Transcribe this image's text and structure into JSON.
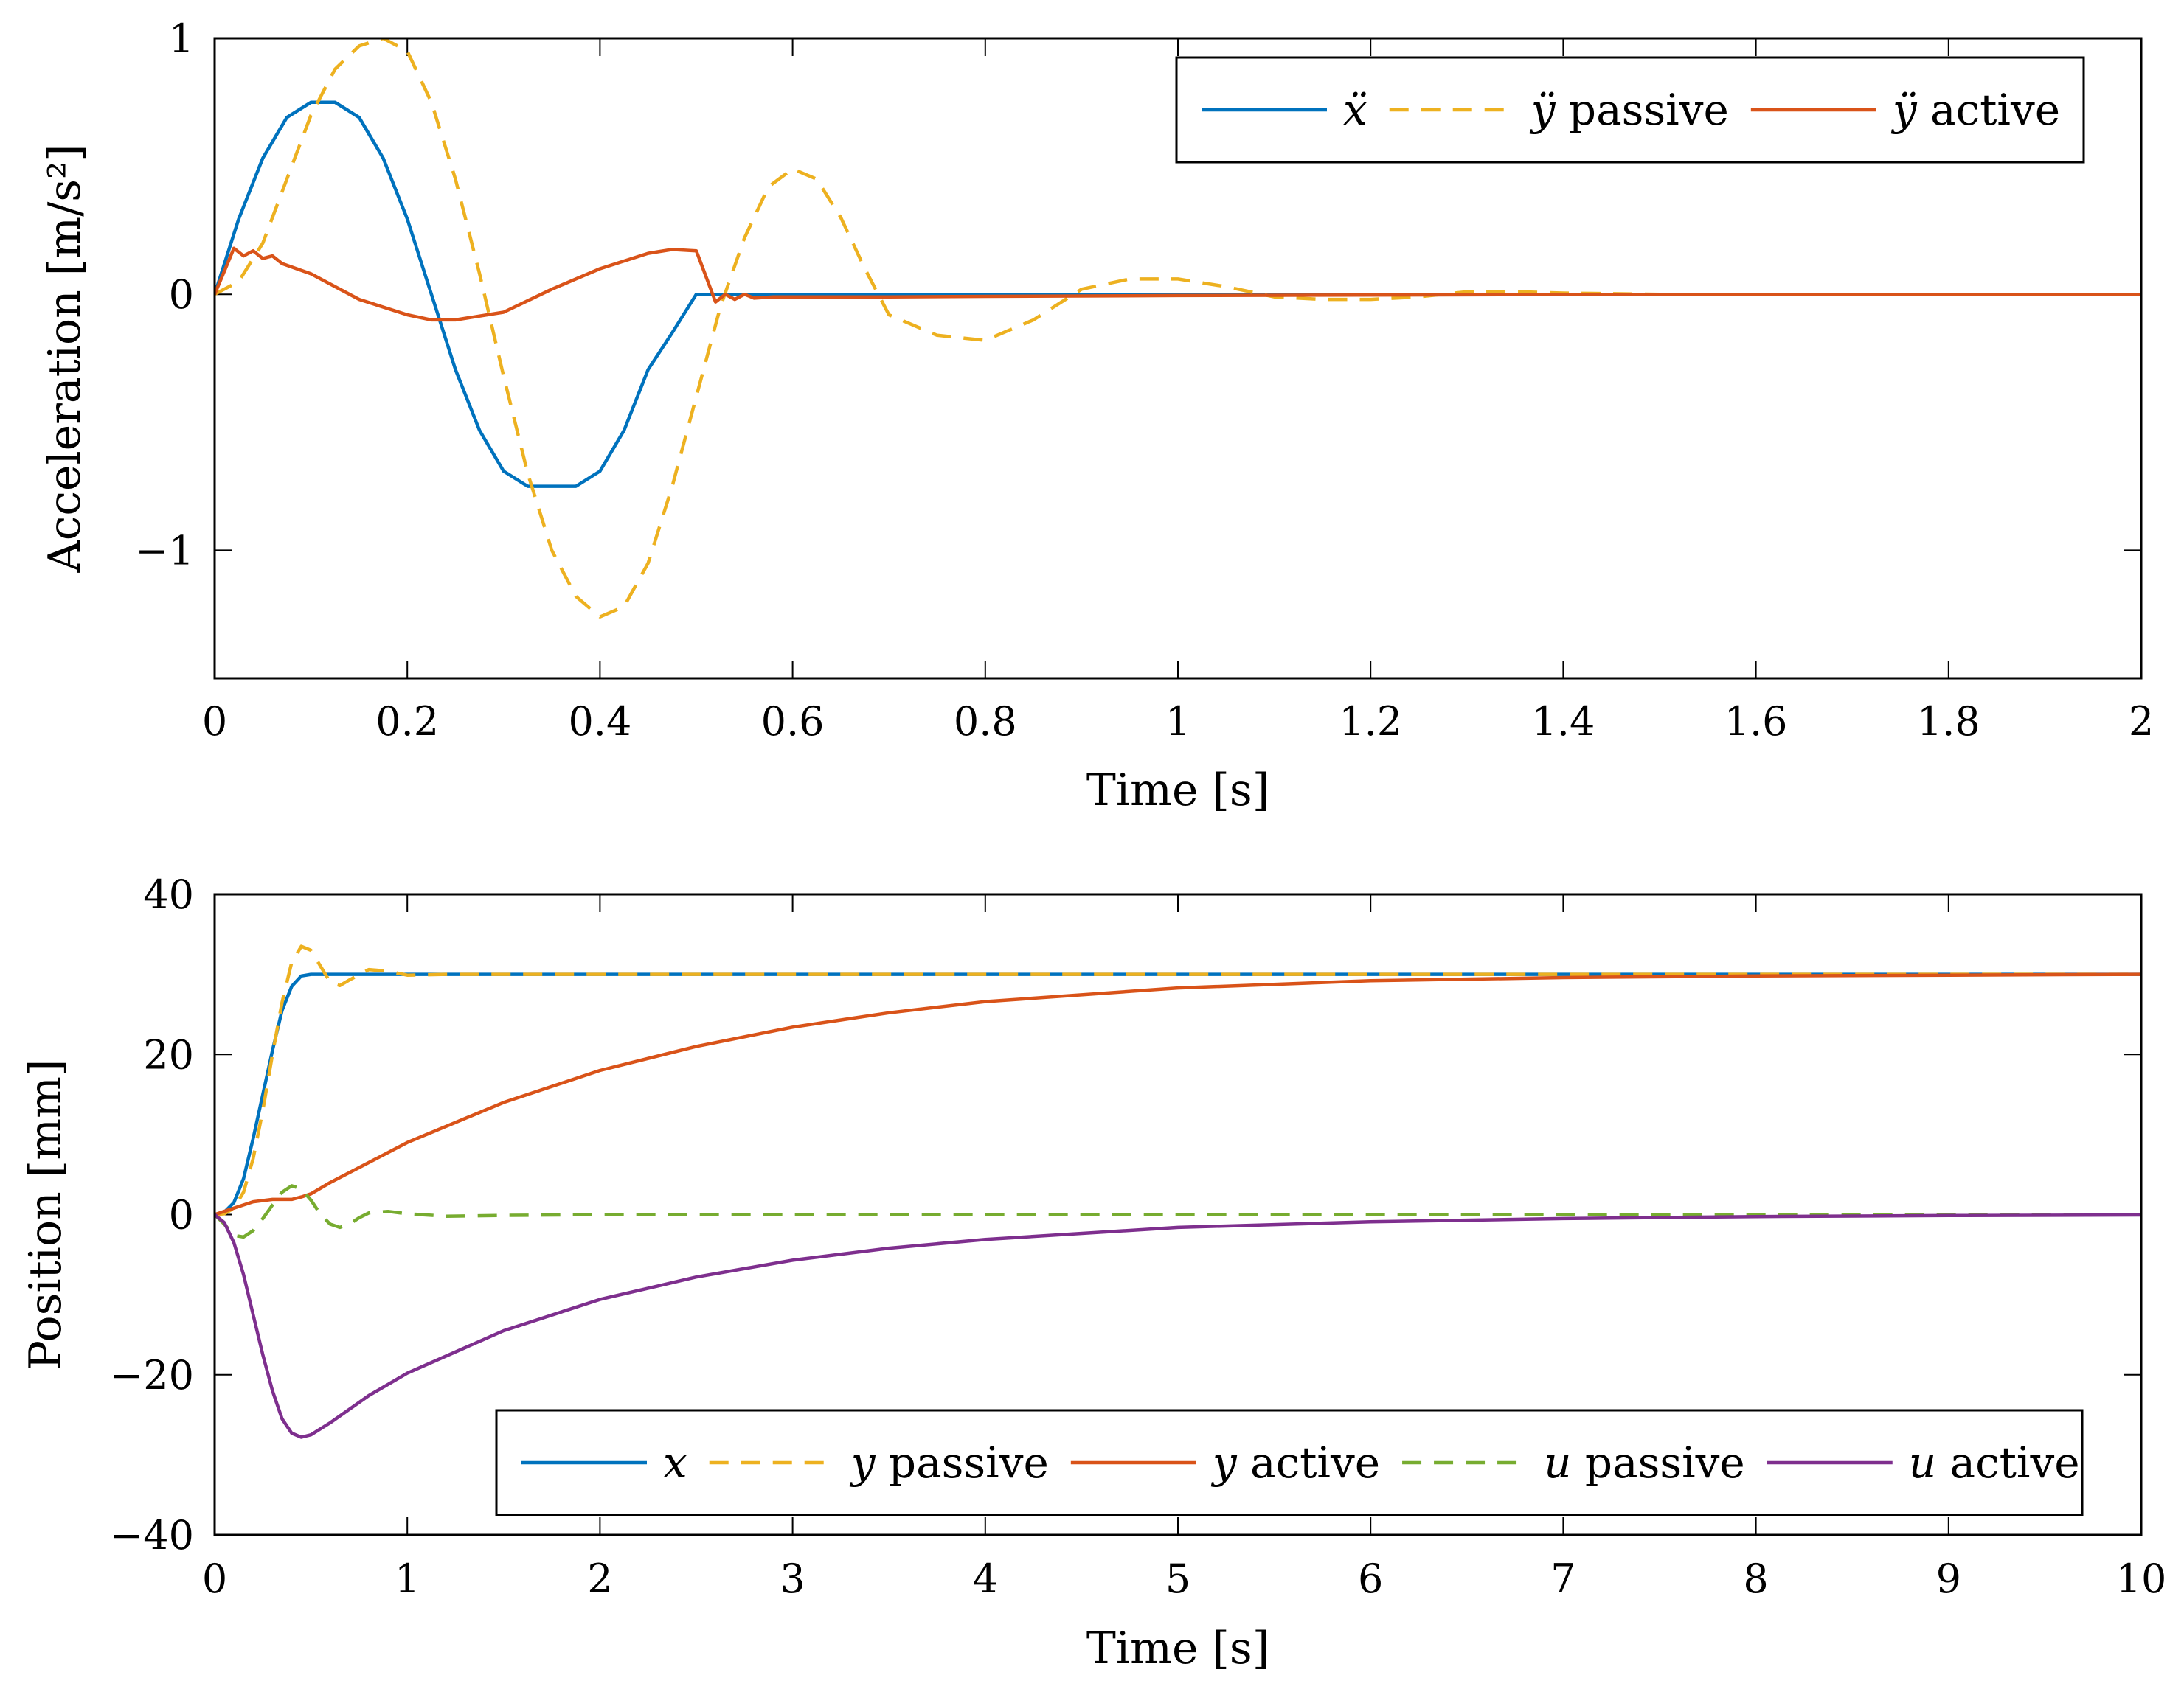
{
  "chart_data": [
    {
      "type": "line",
      "xlabel": "Time [s]",
      "ylabel": "Acceleration [m/s²]",
      "xlim": [
        0,
        2
      ],
      "ylim": [
        -1.5,
        1
      ],
      "xticks": [
        0,
        0.2,
        0.4,
        0.6,
        0.8,
        1,
        1.2,
        1.4,
        1.6,
        1.8,
        2
      ],
      "xtick_labels": [
        "0",
        "0.2",
        "0.4",
        "0.6",
        "0.8",
        "1",
        "1.2",
        "1.4",
        "1.6",
        "1.8",
        "2"
      ],
      "yticks": [
        -1,
        0,
        1
      ],
      "ytick_labels": [
        "−1",
        "0",
        "1"
      ],
      "grid": false,
      "legend_position": "top-right",
      "series": [
        {
          "name": "ẍ",
          "legend_symbol": "ẍ",
          "legend_text": "",
          "color": "#0072BD",
          "dash": "solid",
          "x": [
            0,
            0.025,
            0.05,
            0.075,
            0.1,
            0.125,
            0.15,
            0.175,
            0.2,
            0.225,
            0.25,
            0.275,
            0.3,
            0.325,
            0.35,
            0.375,
            0.4,
            0.425,
            0.45,
            0.475,
            0.5,
            0.6,
            0.8,
            1.0,
            1.5,
            2.0
          ],
          "y": [
            0,
            0.294,
            0.532,
            0.691,
            0.75,
            0.75,
            0.691,
            0.532,
            0.294,
            0.0,
            -0.294,
            -0.532,
            -0.691,
            -0.75,
            -0.75,
            -0.75,
            -0.691,
            -0.532,
            -0.294,
            -0.15,
            0,
            0,
            0,
            0,
            0,
            0
          ]
        },
        {
          "name": "ÿ passive",
          "legend_symbol": "ÿ",
          "legend_text": " passive",
          "color": "#EDB120",
          "dash": "dashed",
          "x": [
            0,
            0.025,
            0.05,
            0.075,
            0.1,
            0.125,
            0.15,
            0.175,
            0.2,
            0.225,
            0.25,
            0.275,
            0.3,
            0.325,
            0.35,
            0.375,
            0.4,
            0.425,
            0.45,
            0.475,
            0.5,
            0.525,
            0.55,
            0.575,
            0.6,
            0.625,
            0.65,
            0.675,
            0.7,
            0.75,
            0.8,
            0.85,
            0.9,
            0.95,
            1.0,
            1.05,
            1.1,
            1.15,
            1.2,
            1.25,
            1.3,
            1.35,
            1.4,
            1.5,
            1.6,
            1.8,
            2.0
          ],
          "y": [
            0,
            0.05,
            0.2,
            0.45,
            0.7,
            0.88,
            0.97,
            1.0,
            0.95,
            0.75,
            0.45,
            0.08,
            -0.32,
            -0.7,
            -1.0,
            -1.18,
            -1.26,
            -1.22,
            -1.05,
            -0.75,
            -0.4,
            -0.05,
            0.22,
            0.42,
            0.49,
            0.45,
            0.3,
            0.1,
            -0.08,
            -0.16,
            -0.18,
            -0.1,
            0.02,
            0.06,
            0.06,
            0.03,
            -0.01,
            -0.02,
            -0.02,
            -0.01,
            0.01,
            0.01,
            0.005,
            0,
            0,
            0,
            0
          ]
        },
        {
          "name": "ÿ active",
          "legend_symbol": "ÿ",
          "legend_text": " active",
          "color": "#D95319",
          "dash": "solid",
          "x": [
            0,
            0.01,
            0.02,
            0.03,
            0.04,
            0.05,
            0.06,
            0.07,
            0.1,
            0.15,
            0.2,
            0.225,
            0.25,
            0.3,
            0.35,
            0.4,
            0.45,
            0.475,
            0.5,
            0.51,
            0.52,
            0.53,
            0.54,
            0.55,
            0.56,
            0.58,
            0.6,
            0.7,
            0.8,
            1.0,
            1.5,
            2.0
          ],
          "y": [
            0,
            0.09,
            0.18,
            0.15,
            0.17,
            0.14,
            0.15,
            0.12,
            0.08,
            -0.02,
            -0.08,
            -0.1,
            -0.1,
            -0.07,
            0.02,
            0.1,
            0.16,
            0.175,
            0.17,
            0.07,
            -0.03,
            0.0,
            -0.02,
            0.0,
            -0.015,
            -0.01,
            -0.01,
            -0.01,
            -0.008,
            -0.005,
            0,
            0
          ]
        }
      ]
    },
    {
      "type": "line",
      "xlabel": "Time [s]",
      "ylabel": "Position [mm]",
      "xlim": [
        0,
        10
      ],
      "ylim": [
        -40,
        40
      ],
      "xticks": [
        0,
        1,
        2,
        3,
        4,
        5,
        6,
        7,
        8,
        9,
        10
      ],
      "xtick_labels": [
        "0",
        "1",
        "2",
        "3",
        "4",
        "5",
        "6",
        "7",
        "8",
        "9",
        "10"
      ],
      "yticks": [
        -40,
        -20,
        0,
        20,
        40
      ],
      "ytick_labels": [
        "−40",
        "−20",
        "0",
        "20",
        "40"
      ],
      "grid": false,
      "legend_position": "bottom-right",
      "series": [
        {
          "name": "x",
          "legend_symbol": "x",
          "legend_text": "",
          "color": "#0072BD",
          "dash": "solid",
          "x": [
            0,
            0.05,
            0.1,
            0.15,
            0.2,
            0.25,
            0.3,
            0.35,
            0.4,
            0.45,
            0.5,
            1,
            2,
            4,
            6,
            8,
            10
          ],
          "y": [
            0,
            0.3,
            1.5,
            4.5,
            9.5,
            15.0,
            20.5,
            25.5,
            28.5,
            29.8,
            30,
            30,
            30,
            30,
            30,
            30,
            30
          ]
        },
        {
          "name": "y passive",
          "legend_symbol": "y",
          "legend_text": " passive",
          "color": "#EDB120",
          "dash": "dashed",
          "x": [
            0,
            0.05,
            0.1,
            0.15,
            0.2,
            0.25,
            0.3,
            0.35,
            0.4,
            0.45,
            0.5,
            0.55,
            0.6,
            0.65,
            0.7,
            0.8,
            0.9,
            1.0,
            1.2,
            1.5,
            2,
            4,
            6,
            8,
            10
          ],
          "y": [
            0,
            0.1,
            0.8,
            2.8,
            7.0,
            13.0,
            20.0,
            26.5,
            31.5,
            33.5,
            33.0,
            31.0,
            29.0,
            28.6,
            29.3,
            30.6,
            30.4,
            29.9,
            30.0,
            30,
            30,
            30,
            30,
            30,
            30
          ]
        },
        {
          "name": "y active",
          "legend_symbol": "y",
          "legend_text": " active",
          "color": "#D95319",
          "dash": "solid",
          "x": [
            0,
            0.1,
            0.2,
            0.3,
            0.4,
            0.45,
            0.5,
            0.6,
            0.8,
            1,
            1.5,
            2,
            2.5,
            3,
            3.5,
            4,
            5,
            6,
            7,
            8,
            9,
            10
          ],
          "y": [
            0,
            0.8,
            1.6,
            1.9,
            1.9,
            2.2,
            2.6,
            4.0,
            6.5,
            9.0,
            14.0,
            18.0,
            21.0,
            23.4,
            25.2,
            26.6,
            28.3,
            29.2,
            29.6,
            29.8,
            29.9,
            30.0
          ]
        },
        {
          "name": "u passive",
          "legend_symbol": "u",
          "legend_text": " passive",
          "color": "#77AC30",
          "dash": "dashed",
          "x": [
            0,
            0.05,
            0.1,
            0.15,
            0.2,
            0.25,
            0.3,
            0.35,
            0.4,
            0.45,
            0.5,
            0.55,
            0.6,
            0.65,
            0.7,
            0.75,
            0.8,
            0.9,
            1.0,
            1.2,
            1.5,
            2,
            4,
            6,
            8,
            10
          ],
          "y": [
            0,
            -1.2,
            -2.6,
            -2.8,
            -2.0,
            -0.5,
            1.2,
            2.8,
            3.6,
            3.2,
            1.8,
            0.0,
            -1.2,
            -1.6,
            -1.2,
            -0.4,
            0.2,
            0.4,
            0.1,
            -0.2,
            -0.1,
            0,
            0,
            0,
            0,
            0
          ]
        },
        {
          "name": "u active",
          "legend_symbol": "u",
          "legend_text": " active",
          "color": "#7E2F8E",
          "dash": "solid",
          "x": [
            0,
            0.05,
            0.1,
            0.15,
            0.2,
            0.25,
            0.3,
            0.35,
            0.4,
            0.45,
            0.5,
            0.6,
            0.8,
            1,
            1.5,
            2,
            2.5,
            3,
            3.5,
            4,
            5,
            6,
            7,
            8,
            9,
            10
          ],
          "y": [
            0,
            -1.0,
            -3.5,
            -7.5,
            -12.5,
            -17.5,
            -22.0,
            -25.5,
            -27.3,
            -27.8,
            -27.5,
            -26.0,
            -22.6,
            -19.8,
            -14.5,
            -10.6,
            -7.8,
            -5.7,
            -4.2,
            -3.1,
            -1.6,
            -0.9,
            -0.5,
            -0.25,
            -0.12,
            -0.05
          ]
        }
      ]
    }
  ]
}
